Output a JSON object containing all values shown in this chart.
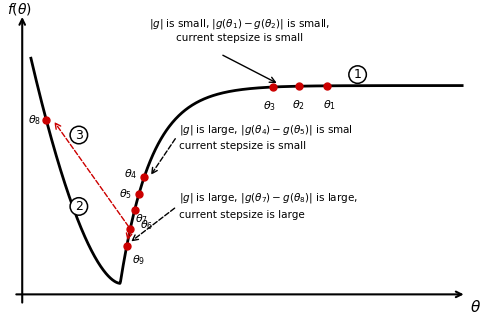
{
  "background_color": "#ffffff",
  "curve_color": "#000000",
  "point_color": "#cc0000",
  "point_size": 5,
  "lw_curve": 2.0,
  "lw_axis": 1.5,
  "region1_line1": "$|g|$ is small, $|g(\\theta_1)-g(\\theta_2)|$ is small,",
  "region1_line2": "current stepsize is small",
  "region3_line1": "$|g|$ is large, $|g(\\theta_4)-g(\\theta_5)|$ is smal",
  "region3_line2": "current stepsize is small",
  "region2_line1": "$|g|$ is large, $|g(\\theta_7)-g(\\theta_8)|$ is large,",
  "region2_line2": "current stepsize is large",
  "fontsize_text": 7.5,
  "fontsize_pt_label": 8,
  "fontsize_circled": 9,
  "xlim": [
    -0.04,
    1.04
  ],
  "ylim": [
    -0.06,
    1.06
  ]
}
